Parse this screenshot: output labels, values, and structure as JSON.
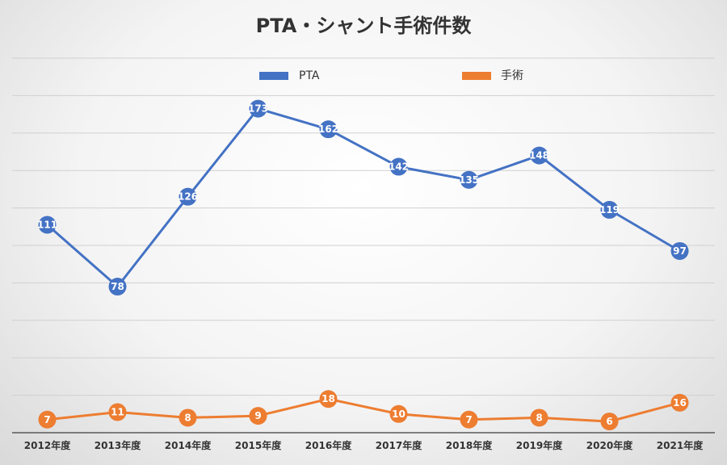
{
  "chart_data": {
    "type": "line",
    "title": "PTA・シャント手術件数",
    "categories": [
      "2012年度",
      "2013年度",
      "2014年度",
      "2015年度",
      "2016年度",
      "2017年度",
      "2018年度",
      "2019年度",
      "2020年度",
      "2021年度"
    ],
    "series": [
      {
        "name": "PTA",
        "color": "#4472c4",
        "values": [
          111,
          78,
          126,
          173,
          162,
          142,
          135,
          148,
          119,
          97
        ]
      },
      {
        "name": "手術",
        "color": "#ed7d31",
        "values": [
          7,
          11,
          8,
          9,
          18,
          10,
          7,
          8,
          6,
          16
        ]
      }
    ],
    "ylim": [
      0,
      200
    ],
    "grid": true,
    "legend_position": "top",
    "data_labels": true
  }
}
